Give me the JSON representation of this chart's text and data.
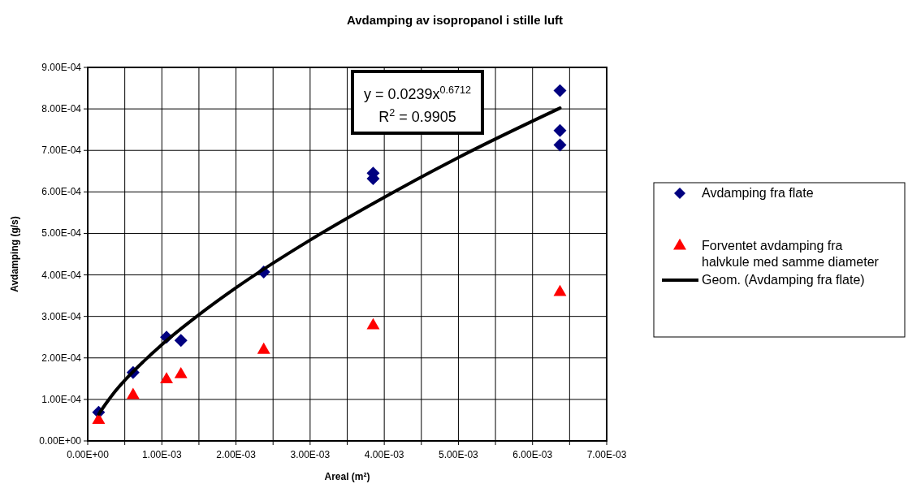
{
  "chart_data": {
    "type": "scatter",
    "title": "Avdamping av isopropanol i stille luft",
    "xlabel": "Areal (m²)",
    "ylabel": "Avdamping (g/s)",
    "xlim": [
      0,
      0.007
    ],
    "ylim": [
      0,
      0.0009
    ],
    "xticks": [
      {
        "value": 0,
        "label": "0.00E+00"
      },
      {
        "value": 0.0005,
        "label": null
      },
      {
        "value": 0.001,
        "label": "1.00E-03"
      },
      {
        "value": 0.0015,
        "label": null
      },
      {
        "value": 0.002,
        "label": "2.00E-03"
      },
      {
        "value": 0.0025,
        "label": null
      },
      {
        "value": 0.003,
        "label": "3.00E-03"
      },
      {
        "value": 0.0035,
        "label": null
      },
      {
        "value": 0.004,
        "label": "4.00E-03"
      },
      {
        "value": 0.0045,
        "label": null
      },
      {
        "value": 0.005,
        "label": "5.00E-03"
      },
      {
        "value": 0.0055,
        "label": null
      },
      {
        "value": 0.006,
        "label": "6.00E-03"
      },
      {
        "value": 0.0065,
        "label": null
      },
      {
        "value": 0.007,
        "label": "7.00E-03"
      }
    ],
    "yticks": [
      {
        "value": 0,
        "label": "0.00E+00"
      },
      {
        "value": 0.0001,
        "label": "1.00E-04"
      },
      {
        "value": 0.0002,
        "label": "2.00E-04"
      },
      {
        "value": 0.0003,
        "label": "3.00E-04"
      },
      {
        "value": 0.0004,
        "label": "4.00E-04"
      },
      {
        "value": 0.0005,
        "label": "5.00E-04"
      },
      {
        "value": 0.0006,
        "label": "6.00E-04"
      },
      {
        "value": 0.0007,
        "label": "7.00E-04"
      },
      {
        "value": 0.0008,
        "label": "8.00E-04"
      },
      {
        "value": 0.0009,
        "label": "9.00E-04"
      }
    ],
    "grid": true,
    "legend": "right",
    "annotations": [
      "y = 0.0239x$^{0.6712}$",
      "R$^{2}$ = 0.9905"
    ],
    "series": [
      {
        "name": "Avdamping fra flate",
        "marker": "diamond",
        "color": "#000080",
        "x": [
          0.000147,
          0.000612,
          0.001063,
          0.001257,
          0.002374,
          0.00385,
          0.00385,
          0.00637,
          0.00637,
          0.00637
        ],
        "values": [
          6.9e-05,
          0.000165,
          0.00025,
          0.000242,
          0.000407,
          0.000645,
          0.000632,
          0.000844,
          0.000748,
          0.000713
        ]
      },
      {
        "name": "Forventet avdamping fra halvkule med samme diameter",
        "marker": "triangle",
        "color": "#ff0000",
        "x": [
          0.000147,
          0.000612,
          0.001063,
          0.001257,
          0.002374,
          0.00385,
          0.00637
        ],
        "values": [
          5e-05,
          0.00011,
          0.000148,
          0.00016,
          0.000219,
          0.000278,
          0.000358
        ]
      },
      {
        "name": "Geom. (Avdamping fra flate)",
        "type": "line",
        "marker": "none",
        "line_style": "solid",
        "color": "#000000",
        "x": [
          0.00015,
          0.00025,
          0.00035,
          0.0005,
          0.00075,
          0.001,
          0.0015,
          0.002,
          0.003,
          0.004,
          0.005,
          0.00637
        ],
        "values": [
          6.5e-05,
          9.1e-05,
          0.000115,
          0.000146,
          0.000191,
          0.000232,
          0.000304,
          0.000369,
          0.000484,
          0.000587,
          0.000683,
          0.000802
        ]
      }
    ]
  }
}
